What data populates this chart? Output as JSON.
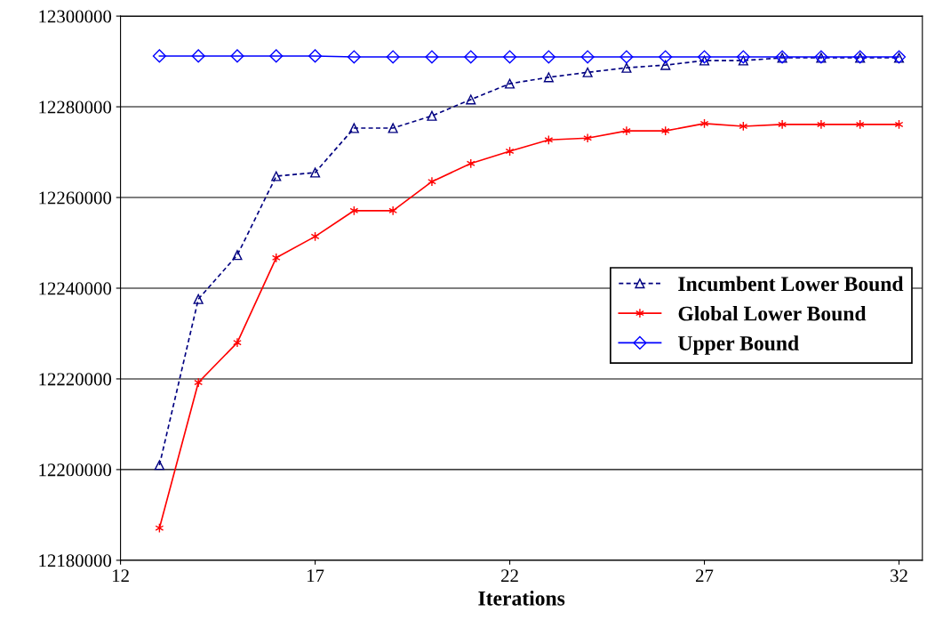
{
  "chart_data": {
    "type": "line",
    "xlabel": "Iterations",
    "x": [
      13,
      14,
      15,
      16,
      17,
      18,
      19,
      20,
      21,
      22,
      23,
      24,
      25,
      26,
      27,
      28,
      29,
      30,
      31,
      32
    ],
    "series": [
      {
        "name": "Incumbent Lower Bound",
        "color": "#000080",
        "marker": "triangle",
        "line_style": "dashed",
        "values": [
          12201000,
          12237600,
          12247300,
          12264700,
          12265500,
          12275300,
          12275300,
          12278000,
          12281600,
          12285100,
          12286500,
          12287600,
          12288600,
          12289200,
          12290200,
          12290200,
          12290800,
          12290800,
          12290800,
          12290800
        ]
      },
      {
        "name": "Global Lower Bound",
        "color": "#ff0000",
        "marker": "cross",
        "line_style": "solid",
        "values": [
          12187100,
          12219200,
          12228000,
          12246700,
          12251400,
          12257100,
          12257100,
          12263500,
          12267500,
          12270200,
          12272700,
          12273100,
          12274700,
          12274700,
          12276300,
          12275700,
          12276100,
          12276100,
          12276100,
          12276100
        ]
      },
      {
        "name": "Upper Bound",
        "color": "#0000ff",
        "marker": "diamond",
        "line_style": "solid",
        "values": [
          12291200,
          12291200,
          12291200,
          12291200,
          12291200,
          12291000,
          12291000,
          12291000,
          12291000,
          12291000,
          12291000,
          12291000,
          12291000,
          12291000,
          12291000,
          12291000,
          12291000,
          12291000,
          12291000,
          12291000
        ]
      }
    ],
    "xlim": [
      12,
      32.6
    ],
    "xticks": [
      12,
      17,
      22,
      27,
      32
    ],
    "ylim": [
      12180000,
      12300000
    ],
    "yticks": [
      12180000,
      12200000,
      12220000,
      12240000,
      12260000,
      12280000,
      12300000
    ],
    "grid": "y",
    "legend": "center right"
  }
}
